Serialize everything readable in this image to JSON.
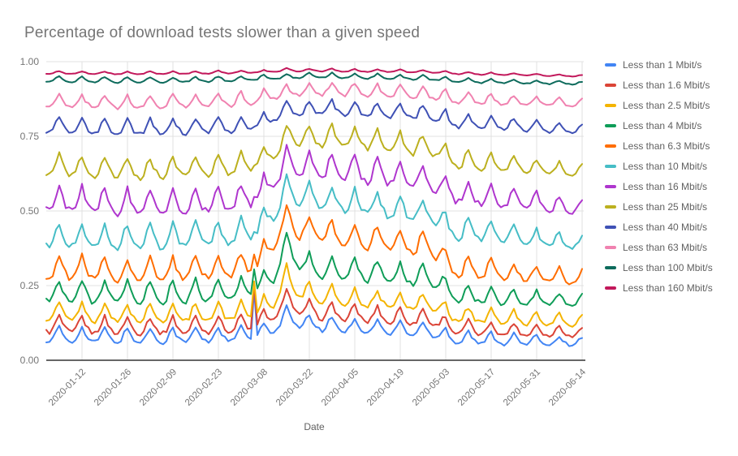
{
  "styles": {
    "background": "#FFFFFF",
    "title_color": "#757575",
    "axis_tick_label_color": "#757575",
    "axis_title_color": "#616161",
    "legend_text_color": "#616161",
    "gridline_color": "#E0E0E0",
    "baseline_color": "#333333"
  },
  "chart_data": {
    "type": "line",
    "title": "Percentage of download tests slower than a given speed",
    "xlabel": "Date",
    "ylabel": "",
    "ylim": [
      0.0,
      1.0
    ],
    "grid": true,
    "legend_position": "right",
    "y_tick_values": [
      0.0,
      0.25,
      0.5,
      0.75,
      1.0
    ],
    "y_tick_labels": [
      "0.00",
      "0.25",
      "0.50",
      "0.75",
      "1.00"
    ],
    "x_tick_labels": [
      "2020-01-12",
      "2020-01-26",
      "2020-02-09",
      "2020-02-23",
      "2020-03-08",
      "2020-03-22",
      "2020-04-05",
      "2020-04-19",
      "2020-05-03",
      "2020-05-17",
      "2020-05-31",
      "2020-06-14"
    ],
    "x_tick_days": [
      11,
      25,
      39,
      53,
      67,
      81,
      95,
      109,
      123,
      137,
      151,
      165
    ],
    "x_range_dates": [
      "2020-01-01",
      "2020-06-14"
    ],
    "days_total": 165,
    "start_weekday": 3,
    "weekly_pattern": [
      1.15,
      0.3,
      -0.3,
      -0.6,
      -0.7,
      -0.35,
      0.5
    ],
    "amp_scale_days": [
      0,
      115,
      165
    ],
    "amp_scale": [
      1.0,
      1.0,
      0.6
    ],
    "trend_dates": [
      "2020-01-01",
      "2020-01-15",
      "2020-01-29",
      "2020-02-12",
      "2020-02-26",
      "2020-03-04",
      "2020-03-07",
      "2020-03-11",
      "2020-03-15",
      "2020-03-19",
      "2020-03-26",
      "2020-04-05",
      "2020-04-15",
      "2020-04-25",
      "2020-05-01",
      "2020-05-04",
      "2020-05-15",
      "2020-05-30",
      "2020-06-14"
    ],
    "trend_days": [
      0,
      14,
      28,
      42,
      56,
      63,
      66,
      70,
      74,
      78,
      85,
      95,
      105,
      115,
      121,
      124,
      135,
      150,
      165
    ],
    "anomaly": {
      "day": 64,
      "date": "2020-03-05",
      "offsets": [
        0.17,
        0.15,
        0.12,
        0.09,
        0.045,
        0.03,
        0.02,
        0.01,
        0.005,
        0.004,
        0.002,
        0.002
      ]
    },
    "series": [
      {
        "name": "Less than 1 Mbit/s",
        "color": "#4285F4",
        "amp": 0.026,
        "trend": [
          0.082,
          0.079,
          0.077,
          0.079,
          0.082,
          0.085,
          0.09,
          0.11,
          0.15,
          0.125,
          0.118,
          0.112,
          0.105,
          0.1,
          0.095,
          0.075,
          0.07,
          0.065,
          0.06
        ]
      },
      {
        "name": "Less than 1.6 Mbit/s",
        "color": "#DB4437",
        "amp": 0.03,
        "trend": [
          0.115,
          0.112,
          0.11,
          0.112,
          0.116,
          0.12,
          0.13,
          0.15,
          0.21,
          0.17,
          0.16,
          0.152,
          0.145,
          0.14,
          0.135,
          0.108,
          0.102,
          0.097,
          0.091
        ]
      },
      {
        "name": "Less than 2.5 Mbit/s",
        "color": "#F4B400",
        "amp": 0.032,
        "trend": [
          0.158,
          0.154,
          0.151,
          0.154,
          0.158,
          0.165,
          0.175,
          0.2,
          0.285,
          0.23,
          0.215,
          0.205,
          0.198,
          0.19,
          0.185,
          0.15,
          0.143,
          0.136,
          0.128
        ]
      },
      {
        "name": "Less than 4 Mbit/s",
        "color": "#0F9D58",
        "amp": 0.039,
        "trend": [
          0.228,
          0.222,
          0.218,
          0.222,
          0.228,
          0.238,
          0.255,
          0.29,
          0.39,
          0.325,
          0.305,
          0.295,
          0.288,
          0.278,
          0.27,
          0.222,
          0.213,
          0.203,
          0.194
        ]
      },
      {
        "name": "Less than 6.3 Mbit/s",
        "color": "#FF6D00",
        "amp": 0.042,
        "trend": [
          0.305,
          0.3,
          0.295,
          0.3,
          0.307,
          0.32,
          0.345,
          0.4,
          0.475,
          0.44,
          0.425,
          0.412,
          0.4,
          0.385,
          0.37,
          0.312,
          0.3,
          0.286,
          0.271
        ]
      },
      {
        "name": "Less than 10 Mbit/s",
        "color": "#46BDC6",
        "amp": 0.044,
        "trend": [
          0.415,
          0.41,
          0.405,
          0.41,
          0.417,
          0.43,
          0.45,
          0.5,
          0.565,
          0.55,
          0.538,
          0.525,
          0.512,
          0.496,
          0.48,
          0.438,
          0.425,
          0.405,
          0.388
        ]
      },
      {
        "name": "Less than 16 Mbit/s",
        "color": "#AF36CE",
        "amp": 0.046,
        "trend": [
          0.532,
          0.527,
          0.522,
          0.527,
          0.533,
          0.545,
          0.56,
          0.6,
          0.665,
          0.65,
          0.643,
          0.634,
          0.622,
          0.608,
          0.595,
          0.562,
          0.548,
          0.527,
          0.506
        ]
      },
      {
        "name": "Less than 25 Mbit/s",
        "color": "#BCB01F",
        "amp": 0.037,
        "trend": [
          0.647,
          0.641,
          0.636,
          0.641,
          0.648,
          0.658,
          0.67,
          0.7,
          0.75,
          0.748,
          0.745,
          0.738,
          0.728,
          0.715,
          0.705,
          0.672,
          0.66,
          0.645,
          0.63
        ]
      },
      {
        "name": "Less than 40 Mbit/s",
        "color": "#3F51B5",
        "amp": 0.027,
        "trend": [
          0.783,
          0.779,
          0.776,
          0.779,
          0.784,
          0.79,
          0.797,
          0.815,
          0.838,
          0.84,
          0.842,
          0.838,
          0.833,
          0.826,
          0.82,
          0.8,
          0.793,
          0.782,
          0.77
        ]
      },
      {
        "name": "Less than 63 Mbit/s",
        "color": "#F082B0",
        "amp": 0.023,
        "trend": [
          0.867,
          0.863,
          0.86,
          0.863,
          0.868,
          0.872,
          0.876,
          0.888,
          0.898,
          0.902,
          0.905,
          0.902,
          0.898,
          0.893,
          0.889,
          0.877,
          0.872,
          0.866,
          0.858
        ]
      },
      {
        "name": "Less than 100 Mbit/s",
        "color": "#0D6B5C",
        "amp": 0.009,
        "trend": [
          0.94,
          0.938,
          0.936,
          0.938,
          0.941,
          0.943,
          0.945,
          0.948,
          0.949,
          0.951,
          0.952,
          0.95,
          0.948,
          0.945,
          0.943,
          0.937,
          0.934,
          0.931,
          0.927
        ]
      },
      {
        "name": "Less than 160 Mbit/s",
        "color": "#C2185B",
        "amp": 0.005,
        "trend": [
          0.963,
          0.962,
          0.961,
          0.962,
          0.964,
          0.965,
          0.966,
          0.969,
          0.972,
          0.971,
          0.971,
          0.97,
          0.969,
          0.967,
          0.966,
          0.962,
          0.959,
          0.956,
          0.952
        ]
      }
    ]
  }
}
